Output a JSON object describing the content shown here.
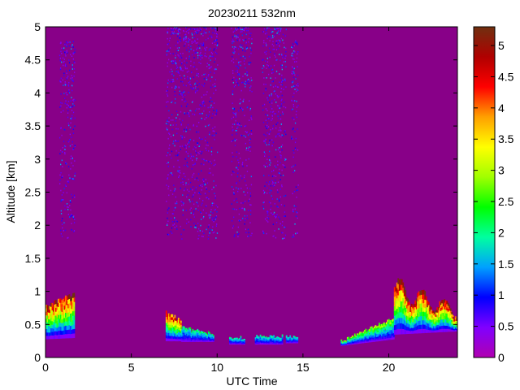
{
  "chart_data": {
    "type": "heatmap",
    "title": "20230211 532nm",
    "xlabel": "UTC Time",
    "ylabel": "Altitude [km]",
    "xlim": [
      0,
      24
    ],
    "ylim": [
      0,
      5
    ],
    "x_ticks": [
      "0",
      "5",
      "10",
      "15",
      "20"
    ],
    "x_tick_values": [
      0,
      5,
      10,
      15,
      20
    ],
    "y_ticks": [
      "0",
      "0.5",
      "1",
      "1.5",
      "2",
      "2.5",
      "3",
      "3.5",
      "4",
      "4.5",
      "5"
    ],
    "y_tick_values": [
      0,
      0.5,
      1,
      1.5,
      2,
      2.5,
      3,
      3.5,
      4,
      4.5,
      5
    ],
    "colorbar": {
      "range": [
        0,
        5.3
      ],
      "ticks": [
        "0",
        "0.5",
        "1",
        "1.5",
        "2",
        "2.5",
        "3",
        "3.5",
        "4",
        "4.5",
        "5"
      ],
      "tick_values": [
        0,
        0.5,
        1,
        1.5,
        2,
        2.5,
        3,
        3.5,
        4,
        4.5,
        5
      ],
      "colormap": [
        "#b000b0",
        "#8000ff",
        "#0000ff",
        "#00a0ff",
        "#00ffa0",
        "#00ff00",
        "#a0ff00",
        "#ffff00",
        "#ffa000",
        "#ff0000",
        "#b00000",
        "#703010"
      ]
    },
    "background_color": "#880088",
    "layers": [
      {
        "x": [
          0,
          1.7
        ],
        "bottom": [
          0.28,
          0.3
        ],
        "top": [
          0.78,
          0.98
        ],
        "peak": 5.0
      },
      {
        "x": [
          7,
          7.9
        ],
        "bottom": [
          0.25,
          0.25
        ],
        "top": [
          0.7,
          0.55
        ],
        "peak": 4.8
      },
      {
        "x": [
          7.9,
          9.8
        ],
        "bottom": [
          0.24,
          0.24
        ],
        "top": [
          0.45,
          0.36
        ],
        "peak": 2.2
      },
      {
        "x": [
          10.7,
          11.6
        ],
        "bottom": [
          0.2,
          0.2
        ],
        "top": [
          0.3,
          0.3
        ],
        "peak": 2.0
      },
      {
        "x": [
          12.2,
          13.8
        ],
        "bottom": [
          0.2,
          0.2
        ],
        "top": [
          0.32,
          0.32
        ],
        "peak": 2.0
      },
      {
        "x": [
          14,
          14.7
        ],
        "bottom": [
          0.22,
          0.22
        ],
        "top": [
          0.32,
          0.32
        ],
        "peak": 2.0
      },
      {
        "x": [
          17.2,
          20.3
        ],
        "bottom": [
          0.18,
          0.28
        ],
        "top": [
          0.25,
          0.6
        ],
        "peak": 3.0
      },
      {
        "x": [
          20.3,
          24
        ],
        "bottom": [
          0.35,
          0.4
        ],
        "top": [
          1.05,
          0.7
        ],
        "peak": 5.2
      }
    ],
    "noise_bands": [
      {
        "x": [
          0.8,
          1.7
        ],
        "top": 4.8
      },
      {
        "x": [
          7.0,
          10.0
        ],
        "top": 5.0
      },
      {
        "x": [
          10.8,
          12.0
        ],
        "top": 5.0
      },
      {
        "x": [
          12.6,
          14.0
        ],
        "top": 5.0
      },
      {
        "x": [
          14.3,
          14.7
        ],
        "top": 4.8
      }
    ]
  }
}
